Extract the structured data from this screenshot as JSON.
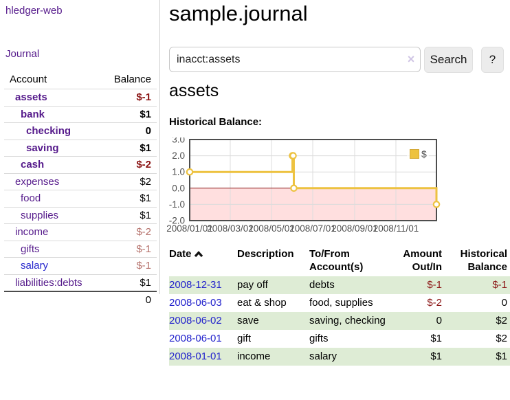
{
  "app": {
    "title": "hledger-web",
    "nav_journal": "Journal"
  },
  "colors": {
    "link_purple": "#551a8b",
    "link_blue": "#2222cc",
    "negative": "#8b1515",
    "negative_dim": "#b5716b",
    "row_stripe": "#deecd5",
    "accent_gold": "#edc240",
    "negative_region": "#ffdfdf",
    "zero_line": "#8b1a1a"
  },
  "sidebar": {
    "headers": {
      "account": "Account",
      "balance": "Balance"
    },
    "accounts": [
      {
        "name": "assets",
        "depth": 1,
        "bold": true,
        "balance": "$-1",
        "neg": "strong"
      },
      {
        "name": "bank",
        "depth": 2,
        "bold": true,
        "balance": "$1"
      },
      {
        "name": "checking",
        "depth": 3,
        "bold": true,
        "balance": "0"
      },
      {
        "name": "saving",
        "depth": 3,
        "bold": true,
        "balance": "$1"
      },
      {
        "name": "cash",
        "depth": 2,
        "bold": true,
        "balance": "$-2",
        "neg": "strong"
      },
      {
        "name": "expenses",
        "depth": 1,
        "bold": false,
        "balance": "$2"
      },
      {
        "name": "food",
        "depth": 2,
        "bold": false,
        "balance": "$1"
      },
      {
        "name": "supplies",
        "depth": 2,
        "bold": false,
        "balance": "$1"
      },
      {
        "name": "income",
        "depth": 1,
        "bold": false,
        "balance": "$-2",
        "neg": "dim"
      },
      {
        "name": "gifts",
        "depth": 2,
        "bold": false,
        "balance": "$-1",
        "neg": "dim"
      },
      {
        "name": "salary",
        "depth": 2,
        "bold": false,
        "balance": "$-1",
        "neg": "dim",
        "link_color": "blue"
      },
      {
        "name": "liabilities:debts",
        "depth": 1,
        "bold": false,
        "balance": "$1"
      }
    ],
    "total": "0"
  },
  "header": {
    "title": "sample.journal"
  },
  "search": {
    "value": "inacct:assets",
    "clear_icon": "×",
    "button": "Search",
    "help": "?"
  },
  "account_page": {
    "heading": "assets",
    "chart_label": "Historical Balance:"
  },
  "chart_data": {
    "type": "line",
    "step": true,
    "title": "Historical Balance",
    "series": [
      {
        "name": "$",
        "color": "#edc240",
        "points": [
          [
            "2008-01-01",
            1
          ],
          [
            "2008-06-01",
            2
          ],
          [
            "2008-06-02",
            2
          ],
          [
            "2008-06-03",
            0
          ],
          [
            "2008-12-31",
            -1
          ]
        ]
      }
    ],
    "x_ticks": [
      {
        "label": "2008/01/01",
        "day": 0
      },
      {
        "label": "2008/03/01",
        "day": 60
      },
      {
        "label": "2008/05/01",
        "day": 121
      },
      {
        "label": "2008/07/01",
        "day": 182
      },
      {
        "label": "2008/09/01",
        "day": 244
      },
      {
        "label": "2008/11/01",
        "day": 305
      }
    ],
    "x_range_days": [
      0,
      365
    ],
    "y_ticks": [
      "3.0",
      "2.0",
      "1.0",
      "0.0",
      "-1.0",
      "-2.0"
    ],
    "ylim": [
      -2,
      3
    ],
    "grid": true,
    "negative_region": true,
    "legend": {
      "label": "$",
      "position": "top-right"
    }
  },
  "register": {
    "columns": [
      {
        "label": "Date",
        "sorted": "asc"
      },
      {
        "label": "Description"
      },
      {
        "label": "To/From Account(s)"
      },
      {
        "label": "Amount Out/In",
        "align": "right"
      },
      {
        "label": "Historical Balance",
        "align": "right"
      }
    ],
    "rows": [
      {
        "date": "2008-12-31",
        "description": "pay off",
        "accounts": "debts",
        "amount": "$-1",
        "amount_neg": true,
        "balance": "$-1",
        "balance_neg": true
      },
      {
        "date": "2008-06-03",
        "description": "eat & shop",
        "accounts": "food, supplies",
        "amount": "$-2",
        "amount_neg": true,
        "balance": "0",
        "balance_neg": false
      },
      {
        "date": "2008-06-02",
        "description": "save",
        "accounts": "saving, checking",
        "amount": "0",
        "amount_neg": false,
        "balance": "$2",
        "balance_neg": false
      },
      {
        "date": "2008-06-01",
        "description": "gift",
        "accounts": "gifts",
        "amount": "$1",
        "amount_neg": false,
        "balance": "$2",
        "balance_neg": false
      },
      {
        "date": "2008-01-01",
        "description": "income",
        "accounts": "salary",
        "amount": "$1",
        "amount_neg": false,
        "balance": "$1",
        "balance_neg": false
      }
    ]
  }
}
